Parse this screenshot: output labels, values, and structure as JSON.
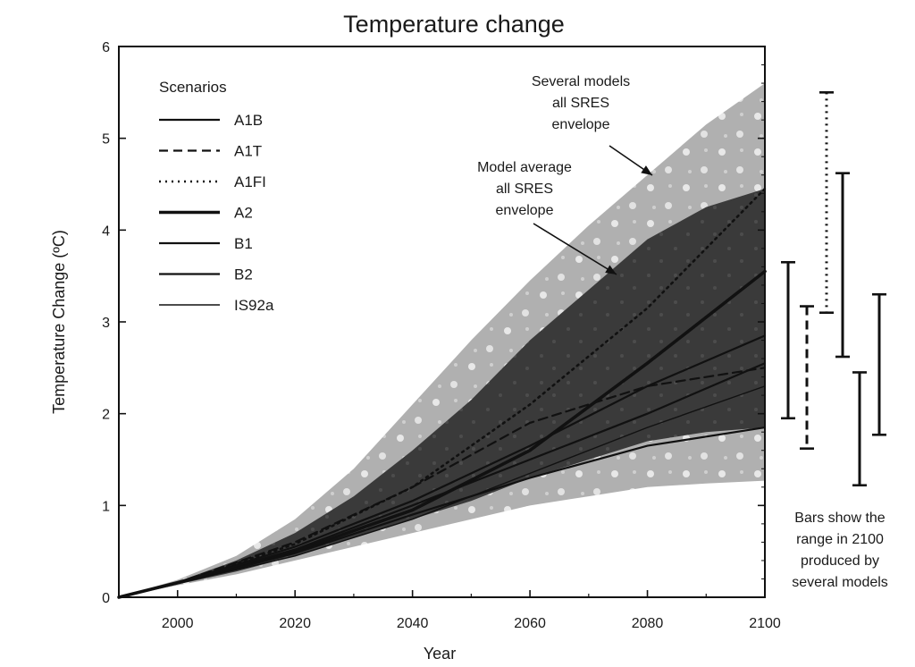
{
  "chart_data": {
    "type": "area",
    "title": "Temperature change",
    "xlabel": "Year",
    "ylabel": "Temperature Change (ºC)",
    "xlim": [
      1990,
      2100
    ],
    "ylim": [
      0,
      6
    ],
    "x_ticks": [
      2000,
      2020,
      2040,
      2060,
      2080,
      2100
    ],
    "y_ticks": [
      0,
      1,
      2,
      3,
      4,
      5,
      6
    ],
    "grid": false,
    "legend": {
      "title": "Scenarios",
      "placement": "top-left",
      "entries": [
        "A1B",
        "A1T",
        "A1FI",
        "A2",
        "B1",
        "B2",
        "IS92a"
      ]
    },
    "envelopes": [
      {
        "label": "Several models all SRES envelope",
        "x": [
          1990,
          2000,
          2010,
          2020,
          2030,
          2040,
          2050,
          2060,
          2070,
          2080,
          2090,
          2100
        ],
        "lower": [
          0,
          0.13,
          0.25,
          0.4,
          0.55,
          0.7,
          0.85,
          1.0,
          1.1,
          1.2,
          1.24,
          1.27
        ],
        "upper": [
          0,
          0.19,
          0.45,
          0.85,
          1.4,
          2.1,
          2.8,
          3.45,
          4.05,
          4.6,
          5.15,
          5.6
        ]
      },
      {
        "label": "Model average all SRES envelope",
        "x": [
          1990,
          2000,
          2010,
          2020,
          2030,
          2040,
          2050,
          2060,
          2070,
          2080,
          2090,
          2100
        ],
        "lower": [
          0,
          0.14,
          0.28,
          0.45,
          0.65,
          0.85,
          1.05,
          1.3,
          1.5,
          1.7,
          1.8,
          1.85
        ],
        "upper": [
          0,
          0.17,
          0.4,
          0.7,
          1.1,
          1.6,
          2.15,
          2.8,
          3.35,
          3.9,
          4.25,
          4.45
        ]
      }
    ],
    "series": [
      {
        "name": "A1B",
        "style": "solid",
        "x": [
          1990,
          2000,
          2020,
          2040,
          2060,
          2080,
          2100
        ],
        "values": [
          0,
          0.16,
          0.55,
          1.05,
          1.65,
          2.3,
          2.85
        ]
      },
      {
        "name": "A1T",
        "style": "dashed",
        "x": [
          1990,
          2000,
          2020,
          2040,
          2060,
          2080,
          2100
        ],
        "values": [
          0,
          0.16,
          0.6,
          1.2,
          1.9,
          2.3,
          2.5
        ]
      },
      {
        "name": "A1FI",
        "style": "dotted",
        "x": [
          1990,
          2000,
          2020,
          2040,
          2060,
          2080,
          2100
        ],
        "values": [
          0,
          0.16,
          0.58,
          1.2,
          2.1,
          3.15,
          4.45
        ]
      },
      {
        "name": "A2",
        "style": "bold",
        "x": [
          1990,
          2000,
          2020,
          2040,
          2060,
          2080,
          2100
        ],
        "values": [
          0,
          0.16,
          0.5,
          0.95,
          1.6,
          2.55,
          3.55
        ]
      },
      {
        "name": "B1",
        "style": "solid",
        "x": [
          1990,
          2000,
          2020,
          2040,
          2060,
          2080,
          2100
        ],
        "values": [
          0,
          0.15,
          0.48,
          0.9,
          1.3,
          1.65,
          1.85
        ]
      },
      {
        "name": "B2",
        "style": "solid",
        "x": [
          1990,
          2000,
          2020,
          2040,
          2060,
          2080,
          2100
        ],
        "values": [
          0,
          0.16,
          0.52,
          1.0,
          1.5,
          2.0,
          2.55
        ]
      },
      {
        "name": "IS92a",
        "style": "thin",
        "x": [
          1990,
          2000,
          2020,
          2040,
          2060,
          2080,
          2100
        ],
        "values": [
          0,
          0.15,
          0.45,
          0.85,
          1.35,
          1.85,
          2.3
        ]
      }
    ],
    "range_bars_2100": [
      {
        "style": "solid",
        "low": 1.95,
        "high": 3.65
      },
      {
        "style": "dashed",
        "low": 1.62,
        "high": 3.17
      },
      {
        "style": "dotted",
        "low": 3.1,
        "high": 5.5
      },
      {
        "style": "solid",
        "low": 2.62,
        "high": 4.62
      },
      {
        "style": "solid",
        "low": 1.22,
        "high": 2.45
      },
      {
        "style": "solid",
        "low": 1.77,
        "high": 3.3
      }
    ],
    "annotations": {
      "several_models": [
        "Several models",
        "all SRES",
        "envelope"
      ],
      "model_average": [
        "Model average",
        "all SRES",
        "envelope"
      ],
      "bars_note": [
        "Bars show the",
        "range in 2100",
        "produced by",
        "several models"
      ]
    }
  },
  "colors": {
    "outer_envelope": "#b3b3b3",
    "inner_envelope": "#3a3a3a",
    "line": "#111111",
    "text": "#1a1a1a"
  }
}
